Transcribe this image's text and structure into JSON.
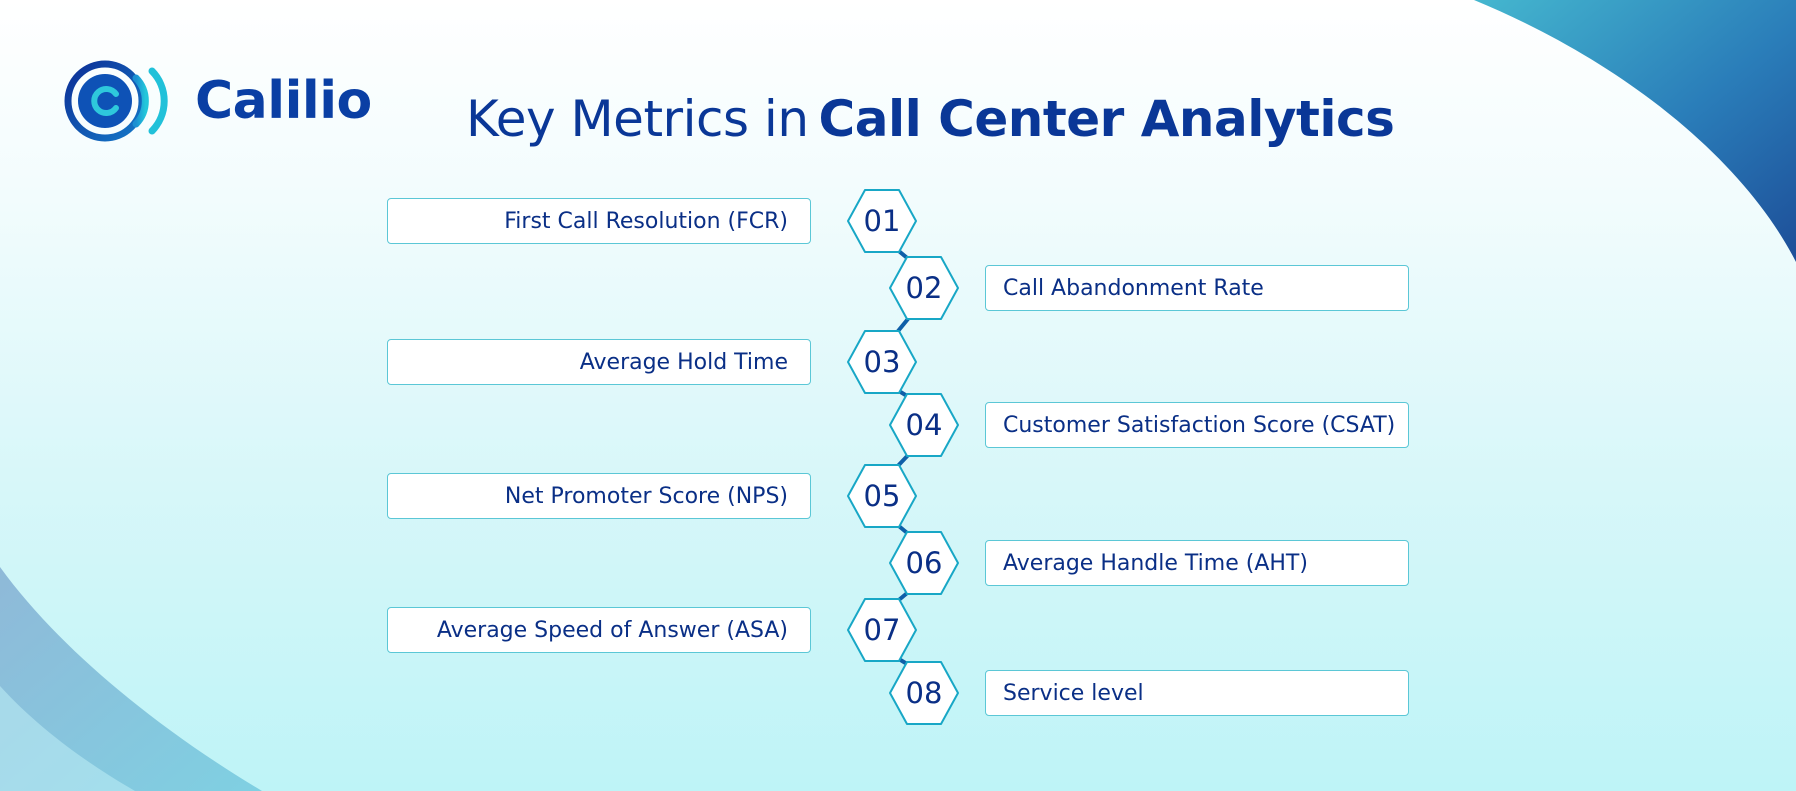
{
  "brand": {
    "name": "Calilio",
    "primary": "#0a3fa4",
    "accent": "#16b3d3"
  },
  "title": {
    "regular": "Key Metrics in",
    "bold": "Call Center Analytics"
  },
  "metrics": [
    {
      "number": "01",
      "label": "First Call Resolution (FCR)",
      "side": "left"
    },
    {
      "number": "02",
      "label": "Call Abandonment Rate",
      "side": "right"
    },
    {
      "number": "03",
      "label": "Average Hold Time",
      "side": "left"
    },
    {
      "number": "04",
      "label": "Customer Satisfaction Score (CSAT)",
      "side": "right"
    },
    {
      "number": "05",
      "label": "Net Promoter Score (NPS)",
      "side": "left"
    },
    {
      "number": "06",
      "label": "Average Handle Time (AHT)",
      "side": "right"
    },
    {
      "number": "07",
      "label": "Average Speed of Answer (ASA)",
      "side": "left"
    },
    {
      "number": "08",
      "label": "Service level",
      "side": "right"
    }
  ]
}
